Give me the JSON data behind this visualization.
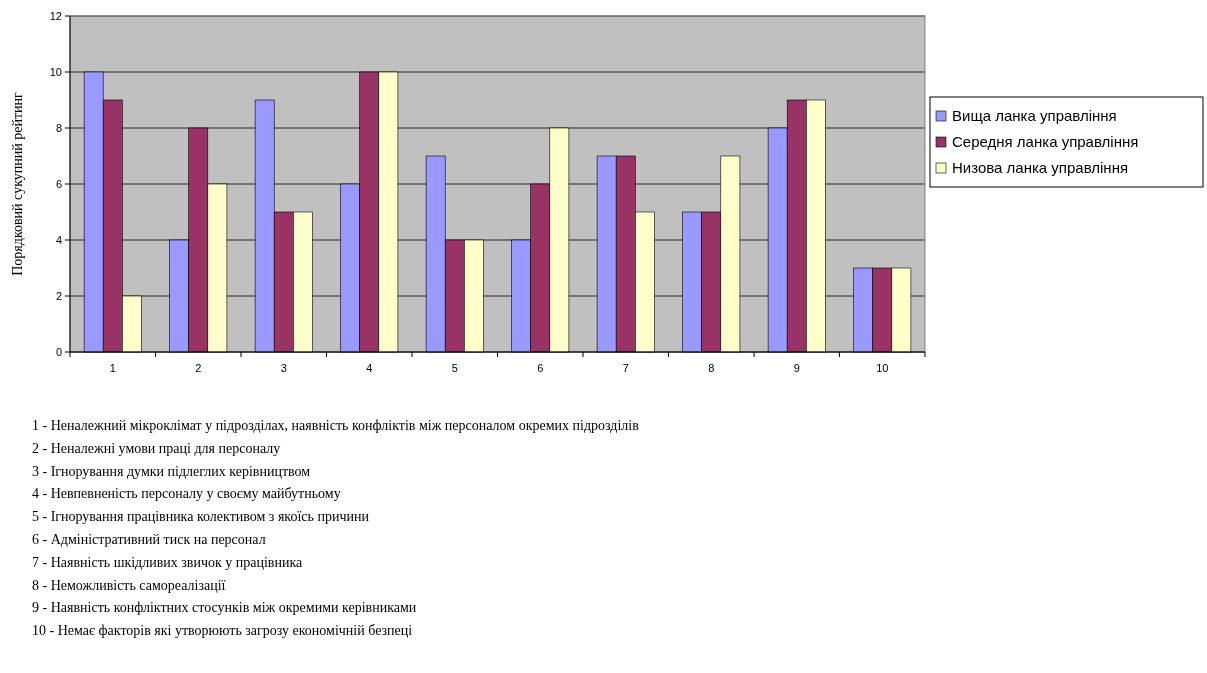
{
  "chart_data": {
    "type": "bar",
    "ylabel": "Порядковий сукупний рейтинг",
    "categories": [
      "1",
      "2",
      "3",
      "4",
      "5",
      "6",
      "7",
      "8",
      "9",
      "10"
    ],
    "series": [
      {
        "name": "Вища ланка управління",
        "color": "#9999ff",
        "values": [
          10,
          4,
          9,
          6,
          7,
          4,
          7,
          5,
          8,
          3
        ]
      },
      {
        "name": "Середня ланка управління",
        "color": "#993366",
        "values": [
          9,
          8,
          5,
          10,
          4,
          6,
          7,
          5,
          9,
          3
        ]
      },
      {
        "name": "Низова ланка управління",
        "color": "#ffffcc",
        "values": [
          2,
          6,
          5,
          10,
          4,
          8,
          5,
          7,
          9,
          3
        ]
      }
    ],
    "ylim": [
      0,
      12
    ],
    "yticks": [
      0,
      2,
      4,
      6,
      8,
      10,
      12
    ],
    "grid": "y",
    "legend": "right",
    "annotations": [
      "1 - Неналежний мікроклімат у підрозділах, наявність конфліктів між персоналом окремих підрозділів",
      "2 - Неналежні умови праці для персоналу",
      "3 - Ігнорування думки підлеглих керівництвом",
      "4 - Невпевненість персоналу у своєму майбутньому",
      "5 - Ігнорування працівника колективом з якоїсь причини",
      "6 - Адміністративний тиск на персонал",
      "7 - Наявність шкідливих звичок у працівника",
      "8 - Неможливість самореалізації",
      "9 - Наявність конфліктних стосунків між окремими керівниками",
      "10 - Немає факторів які утворюють загрозу економічній безпеці"
    ]
  }
}
